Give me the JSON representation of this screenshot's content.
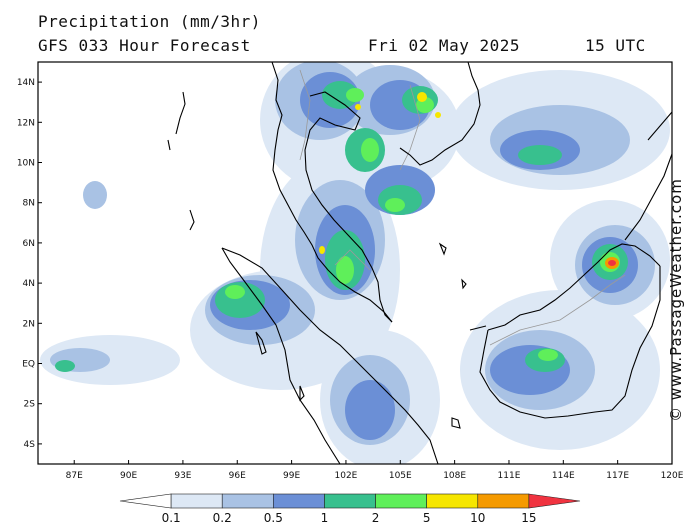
{
  "header": {
    "title": "Precipitation (mm/3hr)",
    "subtitle": "GFS 033 Hour Forecast",
    "date": "Fri 02 May 2025",
    "time": "15 UTC"
  },
  "credit": "© www.PassageWeather.com",
  "map": {
    "lon_range": [
      85.0,
      120.0
    ],
    "lat_range": [
      -5.0,
      15.0
    ],
    "lon_ticks": [
      "87E",
      "90E",
      "93E",
      "96E",
      "99E",
      "102E",
      "105E",
      "108E",
      "111E",
      "114E",
      "117E",
      "120E"
    ],
    "lat_ticks": [
      "14N",
      "12N",
      "10N",
      "8N",
      "6N",
      "4N",
      "2N",
      "EQ",
      "2S",
      "4S"
    ],
    "lon_values": [
      87,
      90,
      93,
      96,
      99,
      102,
      105,
      108,
      111,
      114,
      117,
      120
    ],
    "lat_values": [
      14,
      12,
      10,
      8,
      6,
      4,
      2,
      0,
      -2,
      -4
    ],
    "colors": {
      "land_line": "#000000",
      "border": "#9a9a9a"
    }
  },
  "colorbar": {
    "labels": [
      "0.1",
      "0.2",
      "0.5",
      "1",
      "2",
      "5",
      "10",
      "15"
    ],
    "colors": [
      "#ffffff",
      "#dde8f5",
      "#a9c2e4",
      "#6b8fd6",
      "#38c08e",
      "#5fef5a",
      "#f6e600",
      "#f59a00",
      "#f03340"
    ]
  }
}
